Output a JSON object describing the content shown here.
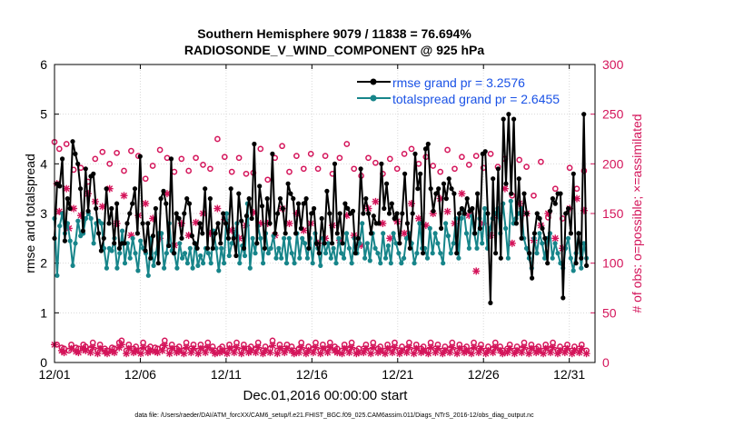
{
  "colors": {
    "rmse": "#000000",
    "spread": "#17858a",
    "obs": "#d4145a",
    "legend_rmse_text": "#1a52e6",
    "legend_spread_text": "#1a52e6",
    "axis": "#000000"
  },
  "chart_data": {
    "type": "line",
    "title": "Southern Hemisphere 9079 / 11838 = 76.694%",
    "subtitle": "RADIOSONDE_V_WIND_COMPONENT @ 925 hPa",
    "xlabel": "Dec.01,2016 00:00:00 start",
    "ylabel_left": "rmse and totalspread",
    "ylabel_right": "# of obs: o=possible; ×=assimilated",
    "footer": "data file: /Users/raeder/DAI/ATM_forcXX/CAM6_setup/f.e21.FHIST_BGC.f09_025.CAM6assim.011/Diags_NTrS_2016-12/obs_diag_output.nc",
    "xlim": [
      0,
      31.5
    ],
    "ylim_left": [
      0,
      6
    ],
    "ylim_right": [
      0,
      300
    ],
    "x_ticks": [
      {
        "label": "12/01",
        "value": 0
      },
      {
        "label": "12/06",
        "value": 5
      },
      {
        "label": "12/11",
        "value": 10
      },
      {
        "label": "12/16",
        "value": 15
      },
      {
        "label": "12/21",
        "value": 20
      },
      {
        "label": "12/26",
        "value": 25
      },
      {
        "label": "12/31",
        "value": 30
      }
    ],
    "y_ticks_left": [
      "0",
      "1",
      "2",
      "3",
      "4",
      "5",
      "6"
    ],
    "y_ticks_right": [
      "0",
      "50",
      "100",
      "150",
      "200",
      "250",
      "300"
    ],
    "series": [
      {
        "name": "rmse grand pr = 3.2576",
        "values": [
          2.5,
          3.6,
          3.55,
          4.1,
          2.45,
          3.3,
          3.1,
          4.45,
          4.2,
          4.0,
          3.5,
          2.65,
          3.9,
          3.05,
          3.75,
          3.8,
          3.1,
          2.6,
          2.25,
          2.5,
          3.5,
          2.8,
          3.1,
          2.4,
          3.2,
          2.3,
          2.4,
          2.4,
          2.8,
          3.0,
          3.2,
          3.5,
          2.6,
          4.15,
          2.8,
          2.25,
          2.8,
          2.1,
          2.55,
          3.1,
          2.0,
          3.3,
          3.45,
          3.2,
          2.35,
          4.1,
          2.2,
          3.0,
          2.9,
          2.5,
          3.0,
          3.3,
          3.2,
          2.55,
          2.4,
          2.3,
          2.8,
          2.6,
          3.5,
          2.3,
          3.3,
          2.3,
          2.6,
          2.8,
          2.4,
          3.0,
          2.8,
          2.5,
          3.5,
          2.5,
          2.15,
          3.4,
          2.85,
          2.3,
          2.95,
          3.3,
          2.9,
          4.4,
          2.4,
          3.55,
          3.15,
          2.3,
          3.3,
          2.8,
          4.2,
          2.6,
          3.0,
          3.3,
          3.1,
          2.6,
          3.6,
          3.4,
          3.3,
          2.6,
          3.2,
          2.7,
          3.2,
          3.3,
          2.3,
          3.0,
          3.1,
          2.4,
          2.2,
          2.9,
          2.4,
          3.45,
          3.0,
          2.4,
          4.0,
          2.6,
          3.0,
          2.4,
          3.2,
          3.1,
          3.0,
          3.05,
          2.2,
          2.5,
          3.9,
          3.0,
          3.3,
          3.0,
          2.6,
          2.95,
          2.8,
          2.8,
          4.0,
          3.1,
          3.6,
          3.0,
          3.2,
          2.9,
          3.0,
          2.4,
          3.0,
          3.8,
          2.8,
          2.3,
          3.0,
          4.2,
          3.5,
          3.8,
          2.2,
          4.3,
          4.4,
          3.5,
          3.05,
          3.4,
          3.5,
          2.7,
          3.6,
          3.3,
          3.7,
          3.5,
          3.4,
          2.2,
          3.0,
          3.1,
          3.0,
          3.3,
          3.05,
          3.1,
          2.6,
          3.4,
          2.7,
          4.2,
          4.25,
          3.0,
          1.2,
          3.7,
          2.2,
          3.9,
          2.1,
          4.9,
          3.6,
          5.0,
          3.4,
          4.9,
          2.8,
          3.7,
          2.5,
          3.4,
          3.0,
          2.2,
          1.7,
          2.6,
          3.0,
          2.9,
          2.7,
          2.5,
          2.0,
          3.05,
          3.3,
          3.2,
          3.4,
          3.4,
          1.3,
          3.0,
          3.1,
          2.6,
          3.8,
          2.0,
          2.6,
          2.1,
          5.0,
          1.95
        ],
        "color": "#000000"
      },
      {
        "name": "totalspread grand pr = 2.6455",
        "values": [
          2.9,
          1.75,
          2.75,
          3.0,
          2.6,
          2.8,
          2.45,
          1.95,
          2.4,
          2.85,
          2.55,
          2.6,
          2.9,
          3.0,
          2.9,
          2.4,
          2.8,
          2.85,
          2.8,
          2.3,
          1.9,
          2.3,
          2.25,
          2.5,
          1.9,
          2.2,
          2.65,
          2.0,
          2.4,
          2.1,
          2.5,
          2.2,
          1.85,
          2.45,
          2.3,
          2.2,
          1.75,
          2.5,
          1.95,
          2.2,
          2.6,
          2.6,
          1.9,
          2.2,
          2.8,
          2.25,
          2.2,
          1.9,
          2.4,
          2.1,
          2.2,
          2.0,
          2.3,
          1.9,
          2.4,
          1.95,
          2.15,
          2.0,
          2.3,
          2.2,
          2.0,
          2.65,
          2.3,
          1.85,
          2.3,
          2.0,
          3.0,
          2.15,
          2.4,
          2.55,
          2.8,
          2.0,
          2.35,
          2.15,
          3.2,
          1.9,
          2.5,
          2.2,
          2.75,
          2.5,
          2.0,
          2.6,
          2.2,
          2.3,
          2.55,
          2.1,
          2.3,
          2.1,
          2.5,
          2.0,
          2.5,
          2.2,
          2.0,
          2.6,
          2.1,
          2.5,
          2.4,
          2.1,
          2.5,
          2.0,
          2.6,
          2.3,
          1.95,
          2.5,
          2.2,
          2.4,
          2.1,
          2.3,
          2.0,
          2.5,
          2.2,
          2.1,
          2.6,
          2.3,
          2.0,
          2.5,
          2.2,
          2.4,
          2.8,
          2.1,
          2.4,
          2.05,
          2.6,
          2.3,
          2.2,
          2.0,
          2.6,
          2.1,
          2.35,
          2.0,
          2.6,
          2.4,
          2.2,
          2.0,
          2.1,
          2.5,
          2.6,
          2.4,
          2.0,
          2.2,
          2.8,
          2.3,
          2.3,
          2.1,
          2.7,
          2.2,
          2.6,
          2.4,
          2.2,
          2.0,
          2.8,
          2.55,
          2.2,
          2.4,
          2.9,
          2.1,
          2.9,
          3.05,
          2.6,
          2.3,
          2.95,
          2.6,
          2.3,
          2.9,
          2.4,
          3.1,
          2.3,
          2.7,
          2.9,
          3.0,
          3.1,
          2.6,
          3.2,
          2.7,
          2.1,
          3.25,
          2.8,
          2.9,
          3.0,
          3.1,
          2.5,
          2.3,
          2.1,
          1.9,
          2.5,
          2.2,
          2.6,
          2.4,
          2.1,
          2.5,
          2.6,
          2.1,
          2.4,
          2.2,
          2.0,
          1.9,
          2.3,
          2.5,
          2.1,
          1.85,
          2.2,
          2.6,
          1.9,
          2.4,
          2.1
        ],
        "color": "#17858a"
      },
      {
        "name": "obs possible",
        "axis": "right",
        "marker": "o",
        "values": [
          222,
          18,
          215,
          15,
          14,
          220,
          12,
          18,
          194,
          15,
          14,
          196,
          18,
          16,
          182,
          14,
          20,
          205,
          12,
          18,
          212,
          14,
          12,
          200,
          15,
          14,
          211,
          20,
          22,
          193,
          12,
          18,
          213,
          14,
          16,
          208,
          12,
          20,
          185,
          14,
          16,
          198,
          15,
          14,
          214,
          16,
          22,
          206,
          12,
          18,
          192,
          14,
          16,
          205,
          12,
          20,
          193,
          14,
          18,
          206,
          12,
          18,
          199,
          14,
          20,
          195,
          16,
          12,
          225,
          14,
          16,
          207,
          12,
          18,
          192,
          14,
          20,
          206,
          12,
          18,
          190,
          14,
          16,
          191,
          14,
          20,
          215,
          12,
          16,
          184,
          14,
          22,
          206,
          12,
          18,
          218,
          14,
          18,
          192,
          16,
          12,
          208,
          14,
          20,
          195,
          12,
          16,
          210,
          14,
          20,
          195,
          12,
          18,
          208,
          14,
          20,
          190,
          16,
          14,
          206,
          12,
          18,
          220,
          14,
          20,
          195,
          12,
          14,
          188,
          14,
          18,
          206,
          12,
          20,
          201,
          14,
          16,
          190,
          12,
          18,
          205,
          14,
          20,
          195,
          12,
          16,
          210,
          14,
          20,
          215,
          12,
          18,
          200,
          14,
          16,
          207,
          12,
          20,
          198,
          14,
          18,
          192,
          12,
          16,
          214,
          14,
          20,
          195,
          12,
          18,
          207,
          14,
          16,
          199,
          12,
          20,
          208,
          14,
          18,
          196,
          12,
          16,
          210,
          14,
          20,
          197,
          16,
          12,
          205,
          14,
          18,
          168,
          12,
          16,
          204,
          14,
          20,
          197,
          12,
          18,
          168,
          14,
          16,
          202,
          12,
          18,
          146,
          14,
          20,
          175,
          12,
          16,
          145,
          14,
          18,
          196,
          12,
          16,
          175,
          14,
          18,
          193,
          12
        ],
        "color": "#d4145a"
      },
      {
        "name": "obs assimilated",
        "axis": "right",
        "marker": "x",
        "values": [
          18,
          180,
          152,
          12,
          10,
          175,
          135,
          14,
          155,
          11,
          10,
          148,
          14,
          12,
          170,
          10,
          15,
          162,
          9,
          14,
          157,
          11,
          9,
          175,
          12,
          10,
          140,
          15,
          18,
          168,
          9,
          14,
          128,
          10,
          12,
          148,
          9,
          15,
          160,
          10,
          12,
          145,
          11,
          10,
          125,
          12,
          17,
          170,
          9,
          14,
          118,
          10,
          12,
          140,
          9,
          15,
          128,
          10,
          14,
          141,
          9,
          14,
          150,
          10,
          15,
          130,
          12,
          9,
          155,
          10,
          12,
          144,
          9,
          14,
          133,
          10,
          15,
          125,
          9,
          14,
          138,
          10,
          12,
          151,
          10,
          15,
          140,
          9,
          12,
          140,
          10,
          17,
          128,
          9,
          14,
          155,
          10,
          14,
          140,
          12,
          9,
          150,
          10,
          15,
          133,
          9,
          12,
          140,
          10,
          15,
          120,
          9,
          14,
          125,
          10,
          15,
          138,
          12,
          10,
          123,
          9,
          14,
          148,
          10,
          15,
          128,
          9,
          10,
          118,
          10,
          14,
          155,
          9,
          15,
          162,
          10,
          12,
          140,
          9,
          14,
          125,
          10,
          15,
          142,
          9,
          12,
          130,
          10,
          15,
          160,
          9,
          14,
          145,
          10,
          12,
          138,
          9,
          15,
          150,
          10,
          14,
          165,
          9,
          12,
          152,
          10,
          15,
          140,
          9,
          14,
          170,
          10,
          12,
          148,
          9,
          15,
          92,
          10,
          14,
          140,
          9,
          12,
          128,
          10,
          15,
          148,
          12,
          9,
          175,
          10,
          14,
          120,
          9,
          12,
          160,
          10,
          15,
          150,
          9,
          14,
          123,
          10,
          12,
          138,
          9,
          14,
          150,
          10,
          15,
          125,
          9,
          12,
          115,
          10,
          14,
          155,
          9,
          12,
          165,
          10,
          14,
          153,
          9
        ]
      }
    ]
  }
}
